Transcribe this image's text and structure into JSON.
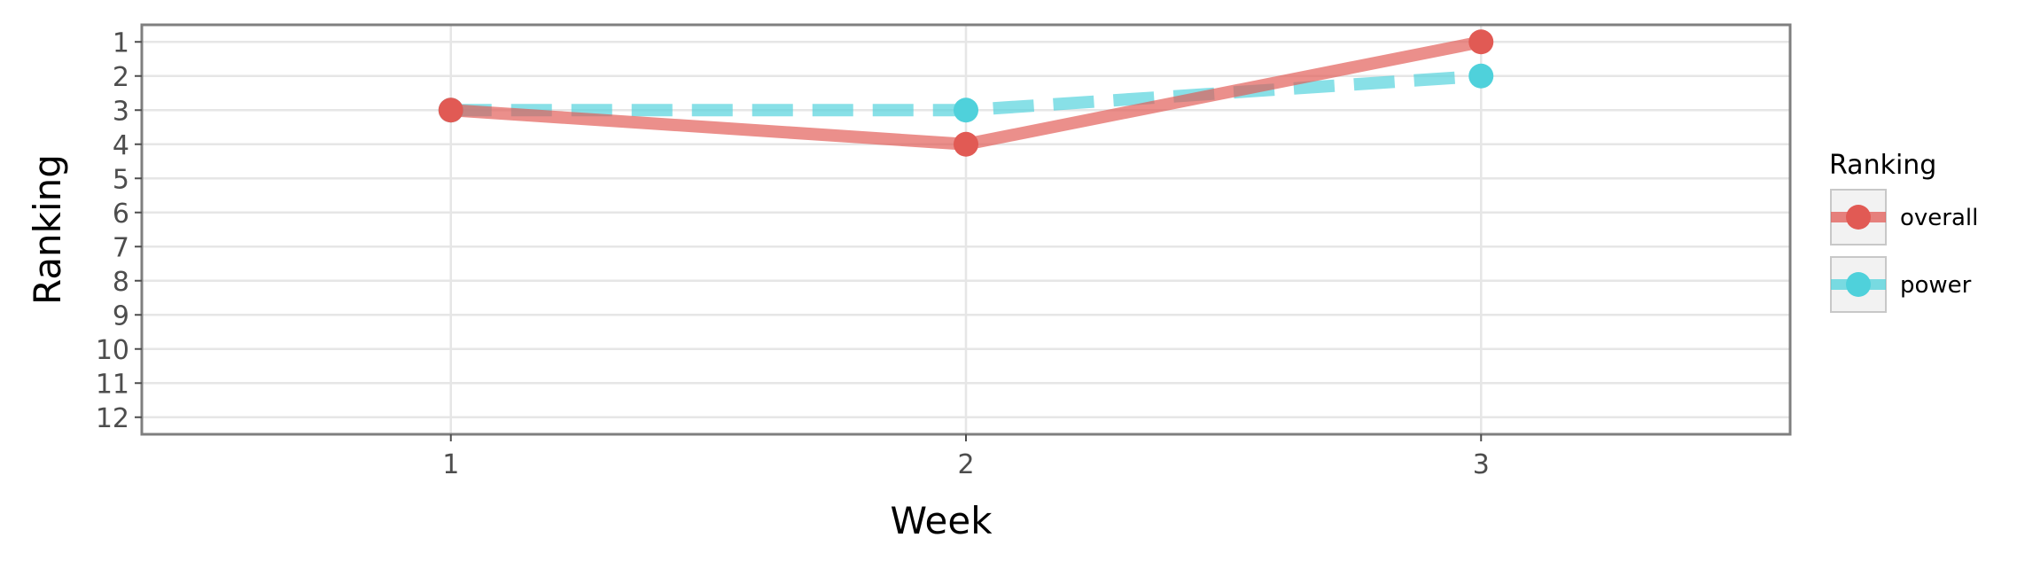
{
  "chart_data": {
    "type": "line",
    "x": [
      1,
      2,
      3
    ],
    "x_ticks": [
      "1",
      "2",
      "3"
    ],
    "xlabel": "Week",
    "ylabel": "Ranking",
    "y_ticks": [
      "1",
      "2",
      "3",
      "4",
      "5",
      "6",
      "7",
      "8",
      "9",
      "10",
      "11",
      "12"
    ],
    "xlim": [
      0.4,
      3.6
    ],
    "ylim": [
      12.5,
      0.5
    ],
    "y_reversed": true,
    "grid": true,
    "legend": {
      "title": "Ranking",
      "position": "right"
    },
    "series": [
      {
        "name": "overall",
        "values": [
          3,
          4,
          1
        ],
        "color": "#e15a54",
        "line_style": "solid"
      },
      {
        "name": "power",
        "values": [
          3,
          3,
          2
        ],
        "color": "#4fd1db",
        "line_style": "dashed"
      }
    ]
  }
}
